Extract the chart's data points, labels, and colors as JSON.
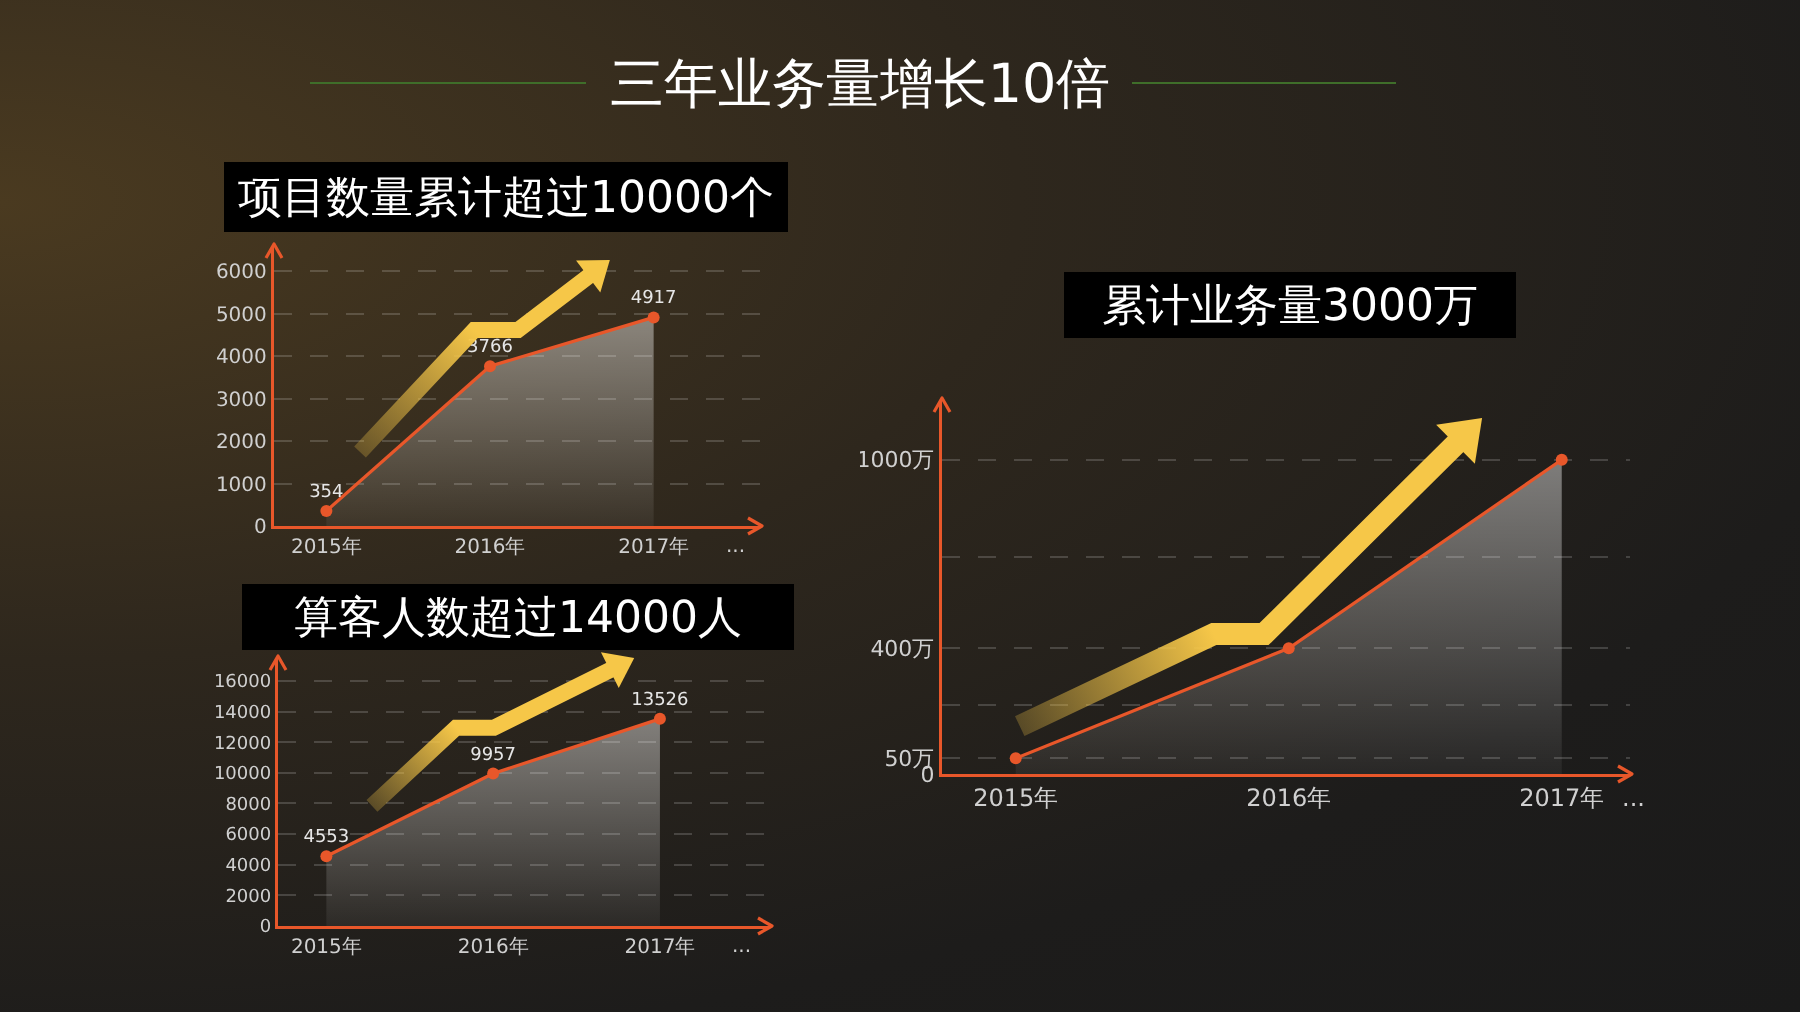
{
  "chart_data": [
    {
      "type": "other",
      "title": "三年业务量增长10倍"
    },
    {
      "type": "area",
      "title": "项目数量累计超过10000个",
      "categories": [
        "2015年",
        "2016年",
        "2017年"
      ],
      "values": [
        354,
        3766,
        4917
      ],
      "color": "#e8572a",
      "ylim": [
        0,
        6600
      ],
      "yticks": [
        0,
        1000,
        2000,
        3000,
        4000,
        5000,
        6000
      ],
      "grid": "y",
      "marker": "circle",
      "data_labels": true,
      "annotations": [
        "..."
      ]
    },
    {
      "type": "area",
      "title": "算客人数超过14000人",
      "categories": [
        "2015年",
        "2016年",
        "2017年"
      ],
      "values": [
        4553,
        9957,
        13526
      ],
      "color": "#e8572a",
      "ylim": [
        0,
        17500
      ],
      "yticks": [
        0,
        2000,
        4000,
        6000,
        8000,
        10000,
        12000,
        14000,
        16000
      ],
      "grid": "y",
      "marker": "circle",
      "data_labels": true,
      "annotations": [
        "..."
      ]
    },
    {
      "type": "area",
      "title": "累计业务量3000万",
      "categories": [
        "2015年",
        "2016年",
        "2017年"
      ],
      "values": [
        50,
        400,
        1000
      ],
      "color": "#e8572a",
      "ylim": [
        0,
        1190
      ],
      "yticks": [
        0,
        {
          "value": 50,
          "label": "50万"
        },
        {
          "value": 220,
          "label": null
        },
        {
          "value": 400,
          "label": "400万"
        },
        {
          "value": 690,
          "label": null
        },
        {
          "value": 1000,
          "label": "1000万"
        }
      ],
      "grid": "y",
      "marker": "circle",
      "annotations": [
        "..."
      ]
    }
  ]
}
